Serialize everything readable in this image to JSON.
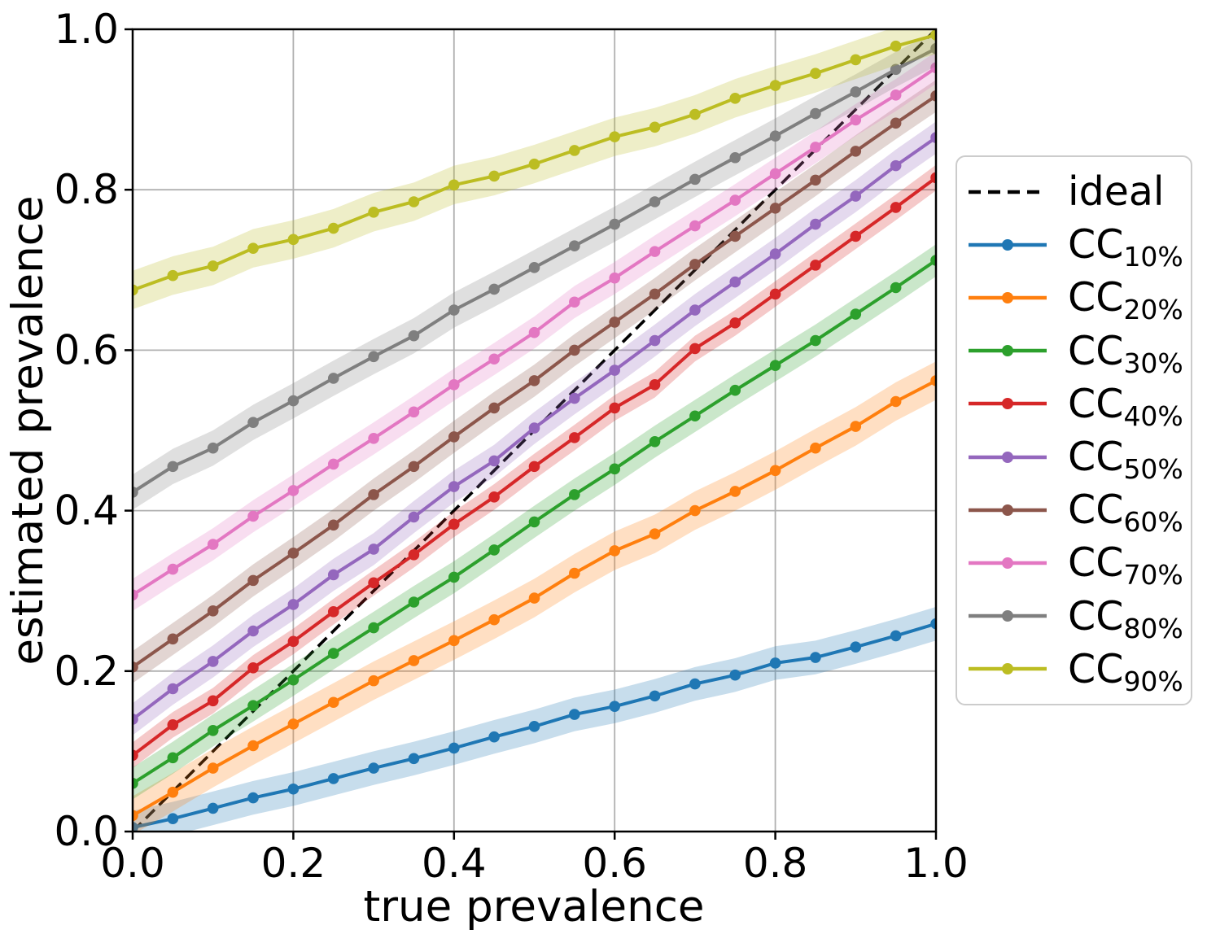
{
  "chart_data": {
    "type": "line",
    "title": "",
    "xlabel": "true prevalence",
    "ylabel": "estimated prevalence",
    "xlim": [
      0.0,
      1.0
    ],
    "ylim": [
      0.0,
      1.0
    ],
    "xticks": [
      0.0,
      0.2,
      0.4,
      0.6,
      0.8,
      1.0
    ],
    "xticklabels": [
      "0.0",
      "0.2",
      "0.4",
      "0.6",
      "0.8",
      "1.0"
    ],
    "yticks": [
      0.0,
      0.2,
      0.4,
      0.6,
      0.8,
      1.0
    ],
    "yticklabels": [
      "0.0",
      "0.2",
      "0.4",
      "0.6",
      "0.8",
      "1.0"
    ],
    "grid": true,
    "grid_color": "#b0b0b0",
    "axis_color": "#000000",
    "band_alpha": 0.25,
    "legend_position": "outside-right",
    "x": [
      0.0,
      0.05,
      0.1,
      0.15,
      0.2,
      0.25,
      0.3,
      0.35,
      0.4,
      0.45,
      0.5,
      0.55,
      0.6,
      0.65,
      0.7,
      0.75,
      0.8,
      0.85,
      0.9,
      0.95,
      1.0
    ],
    "series": [
      {
        "name": "ideal",
        "label_base": "ideal",
        "label_sub": "",
        "color": "#000000",
        "style": "dashed",
        "markers": false,
        "band": 0,
        "values": [
          0.0,
          0.05,
          0.1,
          0.15,
          0.2,
          0.25,
          0.3,
          0.35,
          0.4,
          0.45,
          0.5,
          0.55,
          0.6,
          0.65,
          0.7,
          0.75,
          0.8,
          0.85,
          0.9,
          0.95,
          1.0
        ]
      },
      {
        "name": "CC_10%",
        "label_base": "CC",
        "label_sub": "10%",
        "color": "#1f77b4",
        "style": "solid",
        "markers": true,
        "band": 0.021,
        "values": [
          0.005,
          0.016,
          0.029,
          0.042,
          0.053,
          0.066,
          0.079,
          0.091,
          0.104,
          0.118,
          0.131,
          0.146,
          0.156,
          0.169,
          0.184,
          0.195,
          0.21,
          0.217,
          0.23,
          0.244,
          0.259
        ]
      },
      {
        "name": "CC_20%",
        "label_base": "CC",
        "label_sub": "20%",
        "color": "#ff7f0e",
        "style": "solid",
        "markers": true,
        "band": 0.024,
        "values": [
          0.02,
          0.049,
          0.079,
          0.107,
          0.134,
          0.161,
          0.188,
          0.213,
          0.238,
          0.264,
          0.291,
          0.322,
          0.35,
          0.371,
          0.4,
          0.424,
          0.45,
          0.478,
          0.505,
          0.536,
          0.562
        ]
      },
      {
        "name": "CC_30%",
        "label_base": "CC",
        "label_sub": "30%",
        "color": "#2ca02c",
        "style": "solid",
        "markers": true,
        "band": 0.02,
        "values": [
          0.06,
          0.092,
          0.126,
          0.157,
          0.189,
          0.222,
          0.254,
          0.286,
          0.317,
          0.351,
          0.386,
          0.42,
          0.452,
          0.486,
          0.518,
          0.55,
          0.581,
          0.612,
          0.645,
          0.678,
          0.712
        ]
      },
      {
        "name": "CC_40%",
        "label_base": "CC",
        "label_sub": "40%",
        "color": "#d62728",
        "style": "solid",
        "markers": true,
        "band": 0.016,
        "values": [
          0.095,
          0.133,
          0.163,
          0.204,
          0.237,
          0.274,
          0.31,
          0.345,
          0.383,
          0.417,
          0.455,
          0.491,
          0.528,
          0.557,
          0.602,
          0.634,
          0.67,
          0.706,
          0.742,
          0.778,
          0.815
        ]
      },
      {
        "name": "CC_50%",
        "label_base": "CC",
        "label_sub": "50%",
        "color": "#9467bd",
        "style": "solid",
        "markers": true,
        "band": 0.02,
        "values": [
          0.14,
          0.178,
          0.212,
          0.25,
          0.283,
          0.32,
          0.352,
          0.392,
          0.43,
          0.462,
          0.503,
          0.54,
          0.575,
          0.612,
          0.65,
          0.685,
          0.72,
          0.757,
          0.792,
          0.83,
          0.865
        ]
      },
      {
        "name": "CC_60%",
        "label_base": "CC",
        "label_sub": "60%",
        "color": "#8c564b",
        "style": "solid",
        "markers": true,
        "band": 0.02,
        "values": [
          0.205,
          0.24,
          0.275,
          0.313,
          0.347,
          0.382,
          0.42,
          0.455,
          0.492,
          0.528,
          0.562,
          0.6,
          0.635,
          0.67,
          0.707,
          0.742,
          0.777,
          0.812,
          0.848,
          0.883,
          0.917
        ]
      },
      {
        "name": "CC_70%",
        "label_base": "CC",
        "label_sub": "70%",
        "color": "#e377c2",
        "style": "solid",
        "markers": true,
        "band": 0.02,
        "values": [
          0.295,
          0.327,
          0.358,
          0.393,
          0.425,
          0.458,
          0.49,
          0.523,
          0.557,
          0.589,
          0.622,
          0.66,
          0.69,
          0.723,
          0.755,
          0.787,
          0.82,
          0.853,
          0.887,
          0.918,
          0.952
        ]
      },
      {
        "name": "CC_80%",
        "label_base": "CC",
        "label_sub": "80%",
        "color": "#7f7f7f",
        "style": "solid",
        "markers": true,
        "band": 0.022,
        "values": [
          0.423,
          0.455,
          0.478,
          0.51,
          0.537,
          0.565,
          0.592,
          0.618,
          0.65,
          0.676,
          0.703,
          0.73,
          0.757,
          0.785,
          0.813,
          0.84,
          0.867,
          0.895,
          0.922,
          0.95,
          0.976
        ]
      },
      {
        "name": "CC_90%",
        "label_base": "CC",
        "label_sub": "90%",
        "color": "#bcbd22",
        "style": "solid",
        "markers": true,
        "band": 0.024,
        "values": [
          0.675,
          0.693,
          0.705,
          0.727,
          0.738,
          0.752,
          0.772,
          0.785,
          0.806,
          0.817,
          0.832,
          0.849,
          0.866,
          0.878,
          0.894,
          0.914,
          0.93,
          0.945,
          0.962,
          0.979,
          0.993
        ]
      }
    ]
  }
}
